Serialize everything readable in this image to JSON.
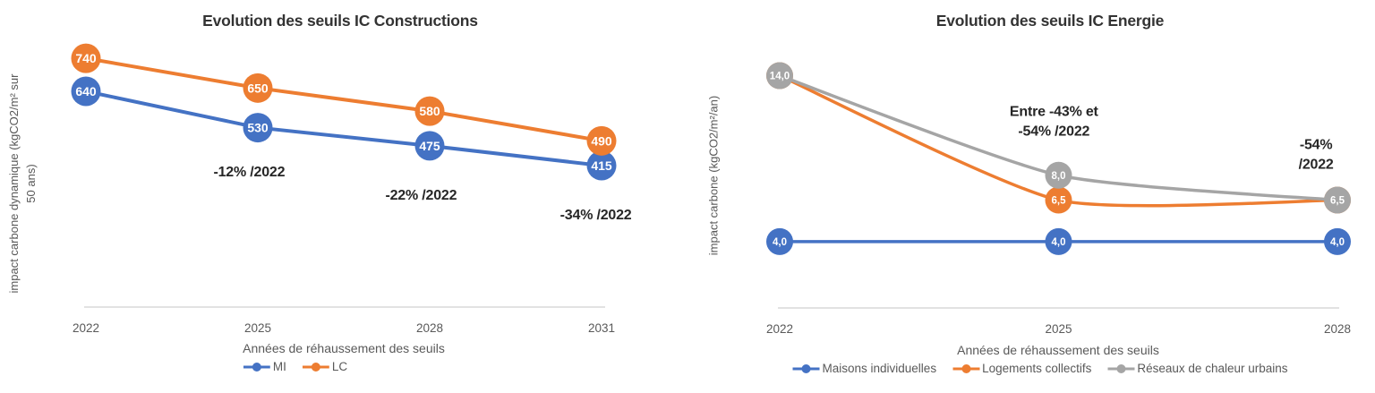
{
  "chart_data": [
    {
      "type": "line",
      "smooth": false,
      "title": "Evolution des seuils IC Constructions",
      "ylabel": "impact carbone dynamique  (kgCO2/m² sur\n50 ans)",
      "xlabel": "Années de réhaussement des seuils",
      "x": [
        2022,
        2025,
        2028,
        2031
      ],
      "ylim": [
        0,
        800
      ],
      "grid": false,
      "legend_position": "bottom",
      "series": [
        {
          "name": "MI",
          "color": "#4472C4",
          "values": [
            640,
            530,
            475,
            415
          ],
          "labels": [
            "640",
            "530",
            "475",
            "415"
          ]
        },
        {
          "name": "LC",
          "color": "#ED7D31",
          "values": [
            740,
            650,
            580,
            490
          ],
          "labels": [
            "740",
            "650",
            "580",
            "490"
          ]
        }
      ],
      "annotations": [
        {
          "text": "-12% /2022",
          "x": 2024.85,
          "y": 393
        },
        {
          "text": "-22% /2022",
          "x": 2027.85,
          "y": 322
        },
        {
          "text": "-34% /2022",
          "x": 2030.9,
          "y": 263
        }
      ]
    },
    {
      "type": "line",
      "smooth": true,
      "title": "Evolution des seuils IC Energie",
      "ylabel": "impact carbone  (kgCO2/m²/an)",
      "xlabel": "Années de réhaussement des seuils",
      "x": [
        2022,
        2025,
        2028
      ],
      "ylim": [
        0,
        15
      ],
      "grid": false,
      "legend_position": "bottom",
      "series": [
        {
          "name": "Maisons individuelles",
          "color": "#4472C4",
          "values": [
            4,
            4,
            4
          ],
          "labels": [
            "4,0",
            "4,0",
            "4,0"
          ]
        },
        {
          "name": "Logements collectifs",
          "color": "#ED7D31",
          "values": [
            14,
            6.5,
            6.5
          ],
          "labels": [
            "14,0",
            "6,5",
            "6,5"
          ]
        },
        {
          "name": "Réseaux de chaleur urbains",
          "color": "#A5A5A5",
          "values": [
            14,
            8,
            6.5
          ],
          "labels": [
            "14,0",
            "8,0",
            "6,5"
          ]
        }
      ],
      "annotations": [
        {
          "text": "Entre -43% et\n-54% /2022",
          "x": 2024.95,
          "y": 11.2
        },
        {
          "text": "-54% /2022",
          "x": 2027.77,
          "y": 9.2
        }
      ]
    }
  ]
}
